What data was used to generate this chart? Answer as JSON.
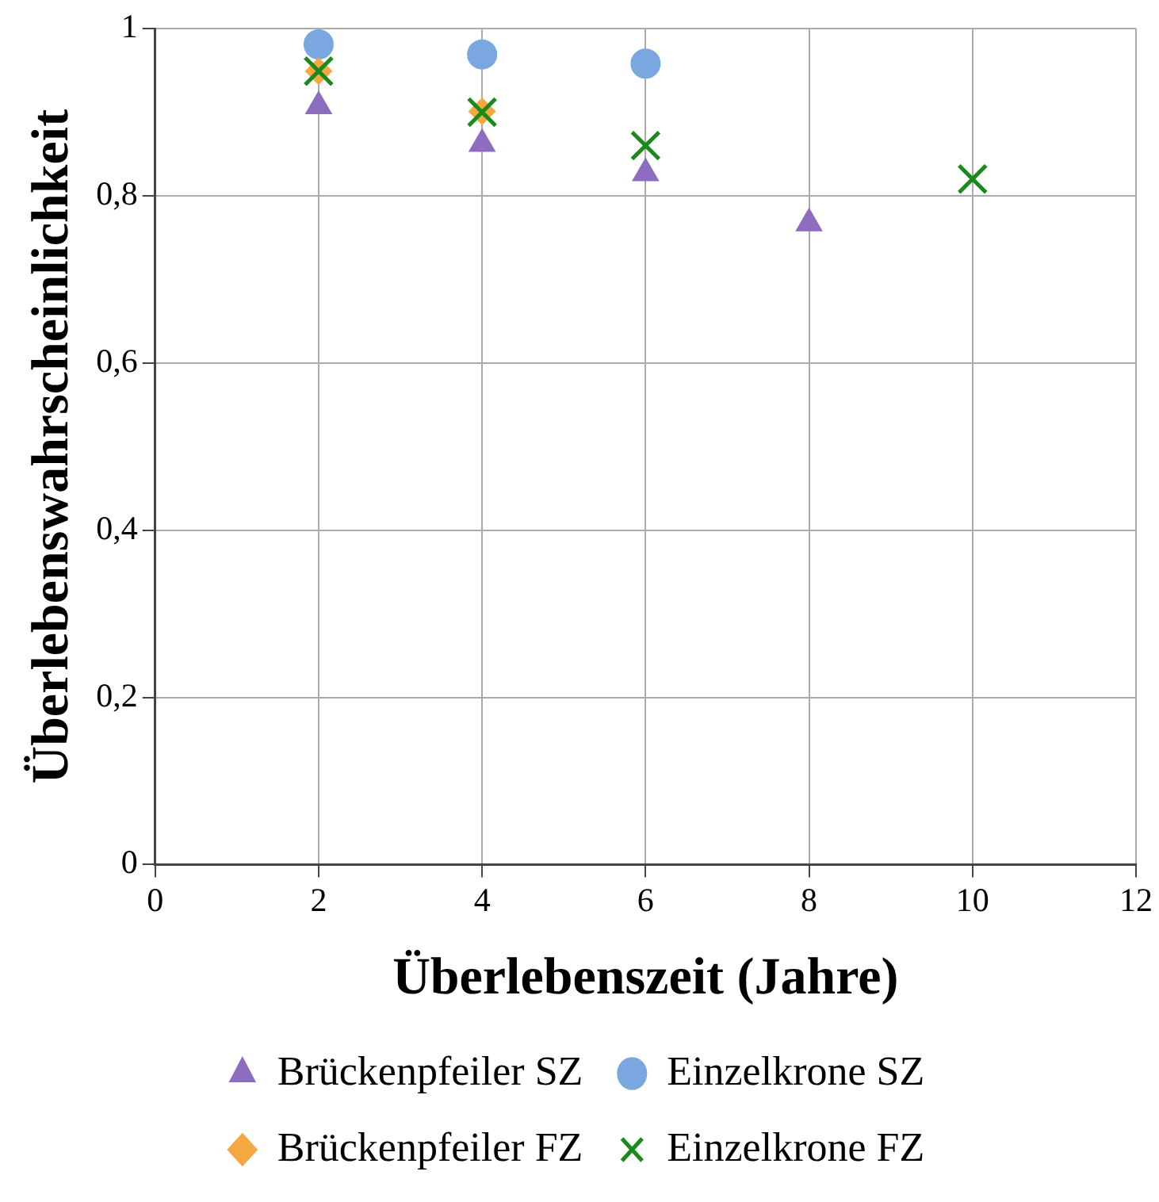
{
  "chart_data": {
    "type": "scatter",
    "xlabel": "Überlebenszeit (Jahre)",
    "ylabel": "Überlebenswahrscheinlichkeit",
    "xlim": [
      0,
      12
    ],
    "xticks": [
      0,
      2,
      4,
      6,
      8,
      10,
      12
    ],
    "ylim": [
      0,
      1
    ],
    "yticks": [
      0,
      {
        "value": 0.2,
        "label": "0,2"
      },
      {
        "value": 0.4,
        "label": "0,4"
      },
      {
        "value": 0.6,
        "label": "0,6"
      },
      {
        "value": 0.8,
        "label": "0,8"
      },
      1
    ],
    "grid": true,
    "legend": "bottom",
    "series": [
      {
        "name": "Brückenpfeiler SZ",
        "color": "#8e6cc0",
        "marker": "triangle",
        "x": [
          2,
          4,
          6,
          8
        ],
        "values": [
          0.907,
          0.862,
          0.827,
          0.767
        ]
      },
      {
        "name": "Einzelkrone SZ",
        "color": "#7aa7e0",
        "marker": "circle",
        "x": [
          2,
          4,
          6
        ],
        "values": [
          0.981,
          0.969,
          0.958
        ]
      },
      {
        "name": "Brückenpfeiler FZ",
        "color": "#f5a742",
        "marker": "diamond",
        "x": [
          2,
          4
        ],
        "values": [
          0.949,
          0.901
        ]
      },
      {
        "name": "Einzelkrone FZ",
        "color": "#1a8a1a",
        "marker": "cross",
        "x": [
          2,
          4,
          6,
          10
        ],
        "values": [
          0.949,
          0.9,
          0.86,
          0.82
        ]
      }
    ]
  }
}
